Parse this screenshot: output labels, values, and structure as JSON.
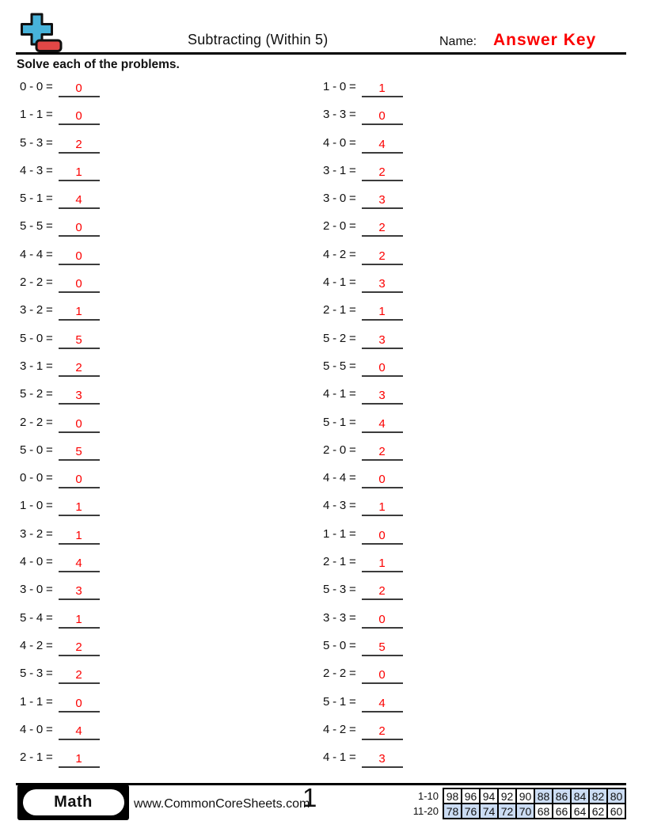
{
  "page": {
    "title": "Subtracting (Within 5)",
    "name_label": "Name:",
    "name_value": "Answer Key",
    "instructions": "Solve each of the problems.",
    "page_number": "1"
  },
  "colors": {
    "answer_red": "#fb0000",
    "highlight_blue": "#cbdcf3",
    "logo_plus_blue": "#47b3da",
    "logo_minus_red": "#e24746"
  },
  "problems": {
    "left": [
      {
        "minuend": 0,
        "subtrahend": 0,
        "answer": 0
      },
      {
        "minuend": 1,
        "subtrahend": 1,
        "answer": 0
      },
      {
        "minuend": 5,
        "subtrahend": 3,
        "answer": 2
      },
      {
        "minuend": 4,
        "subtrahend": 3,
        "answer": 1
      },
      {
        "minuend": 5,
        "subtrahend": 1,
        "answer": 4
      },
      {
        "minuend": 5,
        "subtrahend": 5,
        "answer": 0
      },
      {
        "minuend": 4,
        "subtrahend": 4,
        "answer": 0
      },
      {
        "minuend": 2,
        "subtrahend": 2,
        "answer": 0
      },
      {
        "minuend": 3,
        "subtrahend": 2,
        "answer": 1
      },
      {
        "minuend": 5,
        "subtrahend": 0,
        "answer": 5
      },
      {
        "minuend": 3,
        "subtrahend": 1,
        "answer": 2
      },
      {
        "minuend": 5,
        "subtrahend": 2,
        "answer": 3
      },
      {
        "minuend": 2,
        "subtrahend": 2,
        "answer": 0
      },
      {
        "minuend": 5,
        "subtrahend": 0,
        "answer": 5
      },
      {
        "minuend": 0,
        "subtrahend": 0,
        "answer": 0
      },
      {
        "minuend": 1,
        "subtrahend": 0,
        "answer": 1
      },
      {
        "minuend": 3,
        "subtrahend": 2,
        "answer": 1
      },
      {
        "minuend": 4,
        "subtrahend": 0,
        "answer": 4
      },
      {
        "minuend": 3,
        "subtrahend": 0,
        "answer": 3
      },
      {
        "minuend": 5,
        "subtrahend": 4,
        "answer": 1
      },
      {
        "minuend": 4,
        "subtrahend": 2,
        "answer": 2
      },
      {
        "minuend": 5,
        "subtrahend": 3,
        "answer": 2
      },
      {
        "minuend": 1,
        "subtrahend": 1,
        "answer": 0
      },
      {
        "minuend": 4,
        "subtrahend": 0,
        "answer": 4
      },
      {
        "minuend": 2,
        "subtrahend": 1,
        "answer": 1
      }
    ],
    "right": [
      {
        "minuend": 1,
        "subtrahend": 0,
        "answer": 1
      },
      {
        "minuend": 3,
        "subtrahend": 3,
        "answer": 0
      },
      {
        "minuend": 4,
        "subtrahend": 0,
        "answer": 4
      },
      {
        "minuend": 3,
        "subtrahend": 1,
        "answer": 2
      },
      {
        "minuend": 3,
        "subtrahend": 0,
        "answer": 3
      },
      {
        "minuend": 2,
        "subtrahend": 0,
        "answer": 2
      },
      {
        "minuend": 4,
        "subtrahend": 2,
        "answer": 2
      },
      {
        "minuend": 4,
        "subtrahend": 1,
        "answer": 3
      },
      {
        "minuend": 2,
        "subtrahend": 1,
        "answer": 1
      },
      {
        "minuend": 5,
        "subtrahend": 2,
        "answer": 3
      },
      {
        "minuend": 5,
        "subtrahend": 5,
        "answer": 0
      },
      {
        "minuend": 4,
        "subtrahend": 1,
        "answer": 3
      },
      {
        "minuend": 5,
        "subtrahend": 1,
        "answer": 4
      },
      {
        "minuend": 2,
        "subtrahend": 0,
        "answer": 2
      },
      {
        "minuend": 4,
        "subtrahend": 4,
        "answer": 0
      },
      {
        "minuend": 4,
        "subtrahend": 3,
        "answer": 1
      },
      {
        "minuend": 1,
        "subtrahend": 1,
        "answer": 0
      },
      {
        "minuend": 2,
        "subtrahend": 1,
        "answer": 1
      },
      {
        "minuend": 5,
        "subtrahend": 3,
        "answer": 2
      },
      {
        "minuend": 3,
        "subtrahend": 3,
        "answer": 0
      },
      {
        "minuend": 5,
        "subtrahend": 0,
        "answer": 5
      },
      {
        "minuend": 2,
        "subtrahend": 2,
        "answer": 0
      },
      {
        "minuend": 5,
        "subtrahend": 1,
        "answer": 4
      },
      {
        "minuend": 4,
        "subtrahend": 2,
        "answer": 2
      },
      {
        "minuend": 4,
        "subtrahend": 1,
        "answer": 3
      }
    ]
  },
  "footer": {
    "subject_label": "Math",
    "website": "www.CommonCoreSheets.com",
    "score_rows": [
      {
        "label": "1-10",
        "cells": [
          {
            "value": "98",
            "highlighted": false
          },
          {
            "value": "96",
            "highlighted": false
          },
          {
            "value": "94",
            "highlighted": false
          },
          {
            "value": "92",
            "highlighted": false
          },
          {
            "value": "90",
            "highlighted": false
          },
          {
            "value": "88",
            "highlighted": true
          },
          {
            "value": "86",
            "highlighted": true
          },
          {
            "value": "84",
            "highlighted": true
          },
          {
            "value": "82",
            "highlighted": true
          },
          {
            "value": "80",
            "highlighted": true
          }
        ]
      },
      {
        "label": "11-20",
        "cells": [
          {
            "value": "78",
            "highlighted": true
          },
          {
            "value": "76",
            "highlighted": true
          },
          {
            "value": "74",
            "highlighted": true
          },
          {
            "value": "72",
            "highlighted": true
          },
          {
            "value": "70",
            "highlighted": true
          },
          {
            "value": "68",
            "highlighted": false
          },
          {
            "value": "66",
            "highlighted": false
          },
          {
            "value": "64",
            "highlighted": false
          },
          {
            "value": "62",
            "highlighted": false
          },
          {
            "value": "60",
            "highlighted": false
          }
        ]
      }
    ]
  }
}
